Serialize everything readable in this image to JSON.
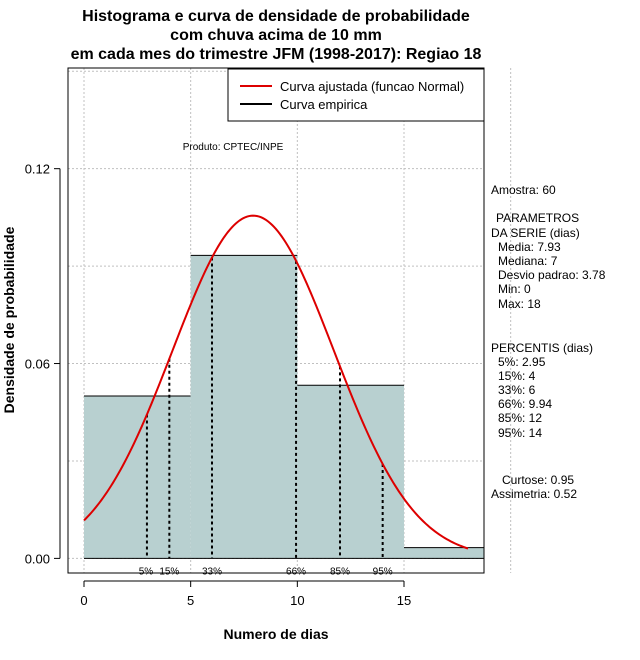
{
  "chart_data": {
    "type": "bar",
    "title_lines": [
      "Histograma e curva de densidade de probabilidade",
      "com chuva acima de 10 mm",
      "em cada mes do trimestre JFM (1998-2017): Regiao 18"
    ],
    "xlabel": "Numero de dias",
    "ylabel": "Densidade de probabilidade",
    "xlim": [
      -0.75,
      18.75
    ],
    "ylim": [
      -0.0045,
      0.151
    ],
    "xticks": [
      "0",
      "5",
      "10",
      "15"
    ],
    "yticks": [
      "0.00",
      "0.06",
      "0.12"
    ],
    "grid": true,
    "bins": [
      {
        "from": 0,
        "to": 5,
        "density": 0.05
      },
      {
        "from": 5,
        "to": 10,
        "density": 0.0933
      },
      {
        "from": 10,
        "to": 15,
        "density": 0.0533
      },
      {
        "from": 15,
        "to": 18.75,
        "density": 0.0033
      }
    ],
    "bar_color": "#b8d0d0",
    "series": [
      {
        "name": "Curva ajustada (funcao Normal)",
        "color": "#dd0000",
        "mean": 7.93,
        "sd": 3.78,
        "x_range": [
          0,
          18
        ]
      },
      {
        "name": "Curva empirica",
        "color": "#000000"
      }
    ],
    "legend_position": "top-right",
    "percentile_lines": [
      {
        "label": "5%",
        "x": 2.95
      },
      {
        "label": "15%",
        "x": 4
      },
      {
        "label": "33%",
        "x": 6
      },
      {
        "label": "66%",
        "x": 9.94
      },
      {
        "label": "85%",
        "x": 12
      },
      {
        "label": "95%",
        "x": 14
      }
    ],
    "annotation": "Produto: CPTEC/INPE",
    "side_panel": {
      "amostra": "Amostra: 60",
      "param_head1": "PARAMETROS",
      "param_head2": "DA SERIE (dias)",
      "media": "Media: 7.93",
      "mediana": "Mediana: 7",
      "desvio": "Desvio padrao: 3.78",
      "min": "Min: 0",
      "max": "Max: 18",
      "perc_head": "PERCENTIS (dias)",
      "p5": "5%: 2.95",
      "p15": "15%: 4",
      "p33": "33%: 6",
      "p66": "66%: 9.94",
      "p85": "85%: 12",
      "p95": "95%: 14",
      "curtose": "Curtose: 0.95",
      "assimetria": "Assimetria: 0.52"
    }
  }
}
